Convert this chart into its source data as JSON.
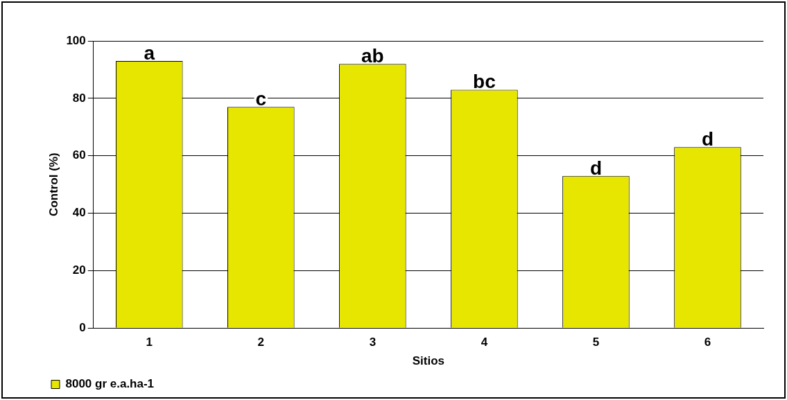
{
  "chart_data": {
    "type": "bar",
    "xlabel": "Sitios",
    "ylabel": "Control (%)",
    "categories": [
      "1",
      "2",
      "3",
      "4",
      "5",
      "6"
    ],
    "series": [
      {
        "name": "8000 gr e.a.ha-1",
        "color": "#e6e600",
        "values": [
          93,
          77,
          92,
          83,
          53,
          63
        ]
      }
    ],
    "ylim": [
      0,
      100
    ],
    "yticks": [
      0,
      20,
      40,
      60,
      80,
      100
    ],
    "grid": "y",
    "legend": "bottom left",
    "annotations": [
      {
        "text": "a",
        "x": "1",
        "y": 93
      },
      {
        "text": "c",
        "x": "2",
        "y": 77
      },
      {
        "text": "ab",
        "x": "3",
        "y": 92
      },
      {
        "text": "bc",
        "x": "4",
        "y": 83
      },
      {
        "text": "d",
        "x": "5",
        "y": 53
      },
      {
        "text": "d",
        "x": "6",
        "y": 63
      }
    ]
  }
}
